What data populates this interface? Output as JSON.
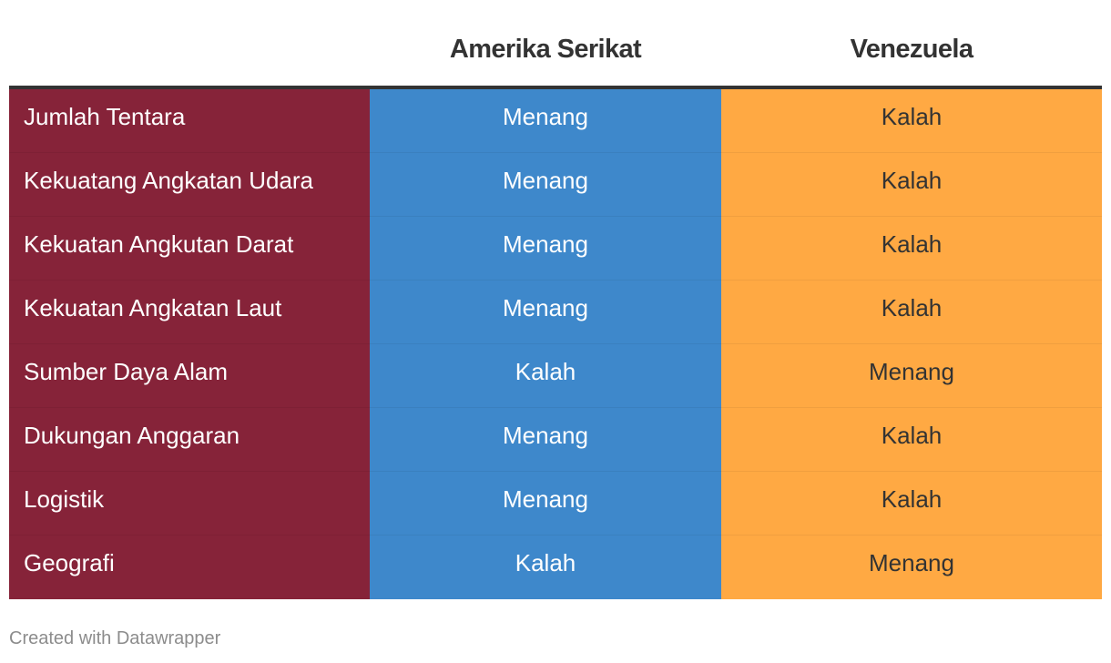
{
  "chart_data": {
    "type": "table",
    "columns": [
      "",
      "Amerika Serikat",
      "Venezuela"
    ],
    "rows": [
      {
        "label": "Jumlah Tentara",
        "us": "Menang",
        "ve": "Kalah"
      },
      {
        "label": "Kekuatang Angkatan Udara",
        "us": "Menang",
        "ve": "Kalah"
      },
      {
        "label": "Kekuatan Angkutan Darat",
        "us": "Menang",
        "ve": "Kalah"
      },
      {
        "label": "Kekuatan Angkatan Laut",
        "us": "Menang",
        "ve": "Kalah"
      },
      {
        "label": "Sumber Daya Alam",
        "us": "Kalah",
        "ve": "Menang"
      },
      {
        "label": "Dukungan Anggaran",
        "us": "Menang",
        "ve": "Kalah"
      },
      {
        "label": "Logistik",
        "us": "Menang",
        "ve": "Kalah"
      },
      {
        "label": "Geografi",
        "us": "Kalah",
        "ve": "Menang"
      }
    ],
    "colors": {
      "label_column": "#862339",
      "us_column": "#3e88cb",
      "ve_column": "#ffa943",
      "header_rule": "#333333"
    }
  },
  "footer": {
    "credit": "Created with Datawrapper"
  }
}
